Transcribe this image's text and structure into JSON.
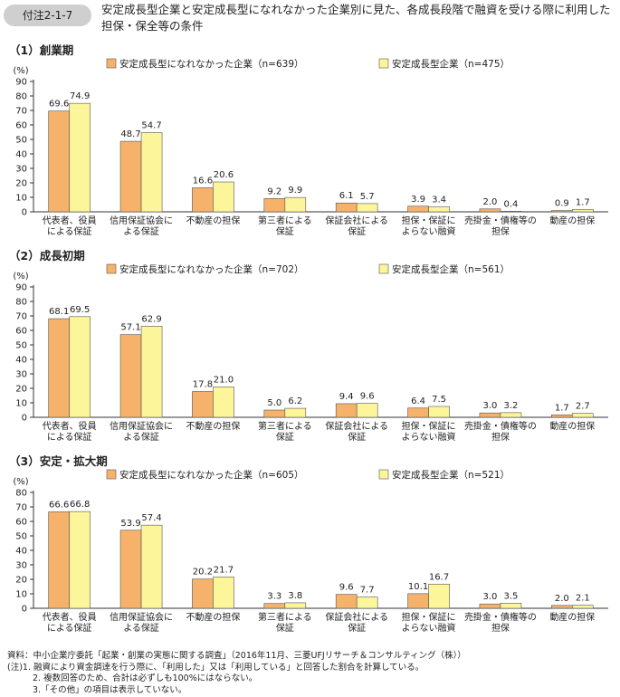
{
  "figure": {
    "label": "付注2-1-7",
    "title": "安定成長型企業と安定成長型になれなかった企業別に見た、各成長段階で融資を受ける際に利用した担保・保全等の条件"
  },
  "colors": {
    "series_a": "#f6b26b",
    "series_b": "#fdf59a",
    "stroke": "#555555",
    "axis": "#333333"
  },
  "chart_data": [
    {
      "type": "bar",
      "title": "（1）創業期",
      "ylabel": "(%)",
      "ylim": [
        0,
        90
      ],
      "yticks": [
        0,
        10,
        20,
        30,
        40,
        50,
        60,
        70,
        80,
        90
      ],
      "categories": [
        [
          "代表者、役員",
          "による保証"
        ],
        [
          "信用保証協会に",
          "よる保証"
        ],
        [
          "不動産の担保"
        ],
        [
          "第三者による",
          "保証"
        ],
        [
          "保証会社による",
          "保証"
        ],
        [
          "担保・保証に",
          "よらない融資"
        ],
        [
          "売掛金・債権等の",
          "担保"
        ],
        [
          "動産の担保"
        ]
      ],
      "series": [
        {
          "name": "安定成長型になれなかった企業（n=639）",
          "values": [
            69.6,
            48.7,
            16.6,
            9.2,
            6.1,
            3.9,
            2.0,
            0.9
          ]
        },
        {
          "name": "安定成長型企業（n=475）",
          "values": [
            74.9,
            54.7,
            20.6,
            9.9,
            5.7,
            3.4,
            0.4,
            1.7
          ]
        }
      ]
    },
    {
      "type": "bar",
      "title": "（2）成長初期",
      "ylabel": "(%)",
      "ylim": [
        0,
        90
      ],
      "yticks": [
        0,
        10,
        20,
        30,
        40,
        50,
        60,
        70,
        80,
        90
      ],
      "categories": [
        [
          "代表者、役員",
          "による保証"
        ],
        [
          "信用保証協会に",
          "よる保証"
        ],
        [
          "不動産の担保"
        ],
        [
          "第三者による",
          "保証"
        ],
        [
          "保証会社による",
          "保証"
        ],
        [
          "担保・保証に",
          "よらない融資"
        ],
        [
          "売掛金・債権等の",
          "担保"
        ],
        [
          "動産の担保"
        ]
      ],
      "series": [
        {
          "name": "安定成長型になれなかった企業（n=702）",
          "values": [
            68.1,
            57.1,
            17.8,
            5.0,
            9.4,
            6.4,
            3.0,
            1.7
          ]
        },
        {
          "name": "安定成長型企業（n=561）",
          "values": [
            69.5,
            62.9,
            21.0,
            6.2,
            9.6,
            7.5,
            3.2,
            2.7
          ]
        }
      ]
    },
    {
      "type": "bar",
      "title": "（3）安定・拡大期",
      "ylabel": "(%)",
      "ylim": [
        0,
        80
      ],
      "yticks": [
        0,
        10,
        20,
        30,
        40,
        50,
        60,
        70,
        80
      ],
      "categories": [
        [
          "代表者、役員",
          "による保証"
        ],
        [
          "信用保証協会に",
          "よる保証"
        ],
        [
          "不動産の担保"
        ],
        [
          "第三者による",
          "保証"
        ],
        [
          "保証会社による",
          "保証"
        ],
        [
          "担保・保証に",
          "よらない融資"
        ],
        [
          "売掛金・債権等の",
          "担保"
        ],
        [
          "動産の担保"
        ]
      ],
      "series": [
        {
          "name": "安定成長型になれなかった企業（n=605）",
          "values": [
            66.6,
            53.9,
            20.2,
            3.3,
            9.6,
            10.1,
            3.0,
            2.0
          ]
        },
        {
          "name": "安定成長型企業（n=521）",
          "values": [
            66.8,
            57.4,
            21.7,
            3.8,
            7.7,
            16.7,
            3.5,
            2.1
          ]
        }
      ]
    }
  ],
  "notes": [
    "資料：中小企業庁委託「起業・創業の実態に関する調査」（2016年11月、三菱UFJリサーチ＆コンサルティング（株））",
    "(注)1. 融資により資金調達を行う際に、「利用した」又は「利用している」と回答した割合を計算している。",
    "2. 複数回答のため、合計は必ずしも100%にはならない。",
    "3.「その他」の項目は表示していない。"
  ]
}
